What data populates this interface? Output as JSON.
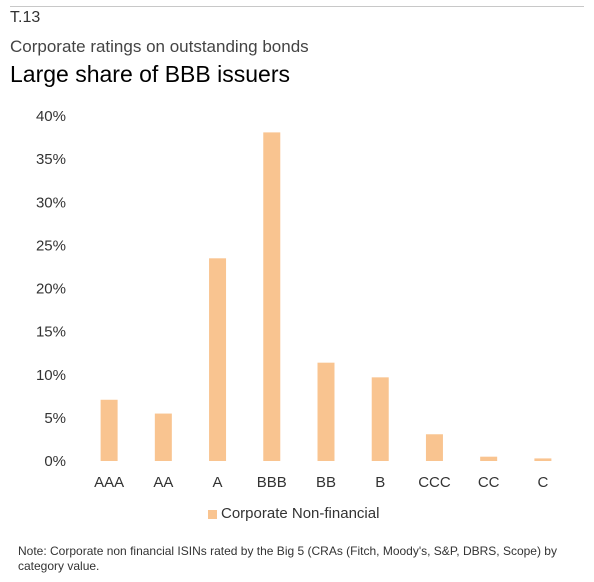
{
  "figure": {
    "id": "T.13",
    "title": "Corporate ratings on outstanding bonds",
    "subtitle": "Large share of BBB issuers",
    "note": "Note: Corporate non financial ISINs rated by the Big 5 (CRAs (Fitch, Moody's, S&P, DBRS, Scope) by category value."
  },
  "chart_data": {
    "type": "bar",
    "categories": [
      "AAA",
      "AA",
      "A",
      "BBB",
      "BB",
      "B",
      "CCC",
      "CC",
      "C"
    ],
    "series": [
      {
        "name": "Corporate Non-financial",
        "values": [
          7.1,
          5.5,
          23.5,
          38.1,
          11.4,
          9.7,
          3.1,
          0.5,
          0.3
        ],
        "color": "#F9C490"
      }
    ],
    "y_ticks": [
      "0%",
      "5%",
      "10%",
      "15%",
      "20%",
      "25%",
      "30%",
      "35%",
      "40%"
    ],
    "ylim": [
      0,
      40
    ],
    "grid": false,
    "legend_position": "bottom"
  }
}
